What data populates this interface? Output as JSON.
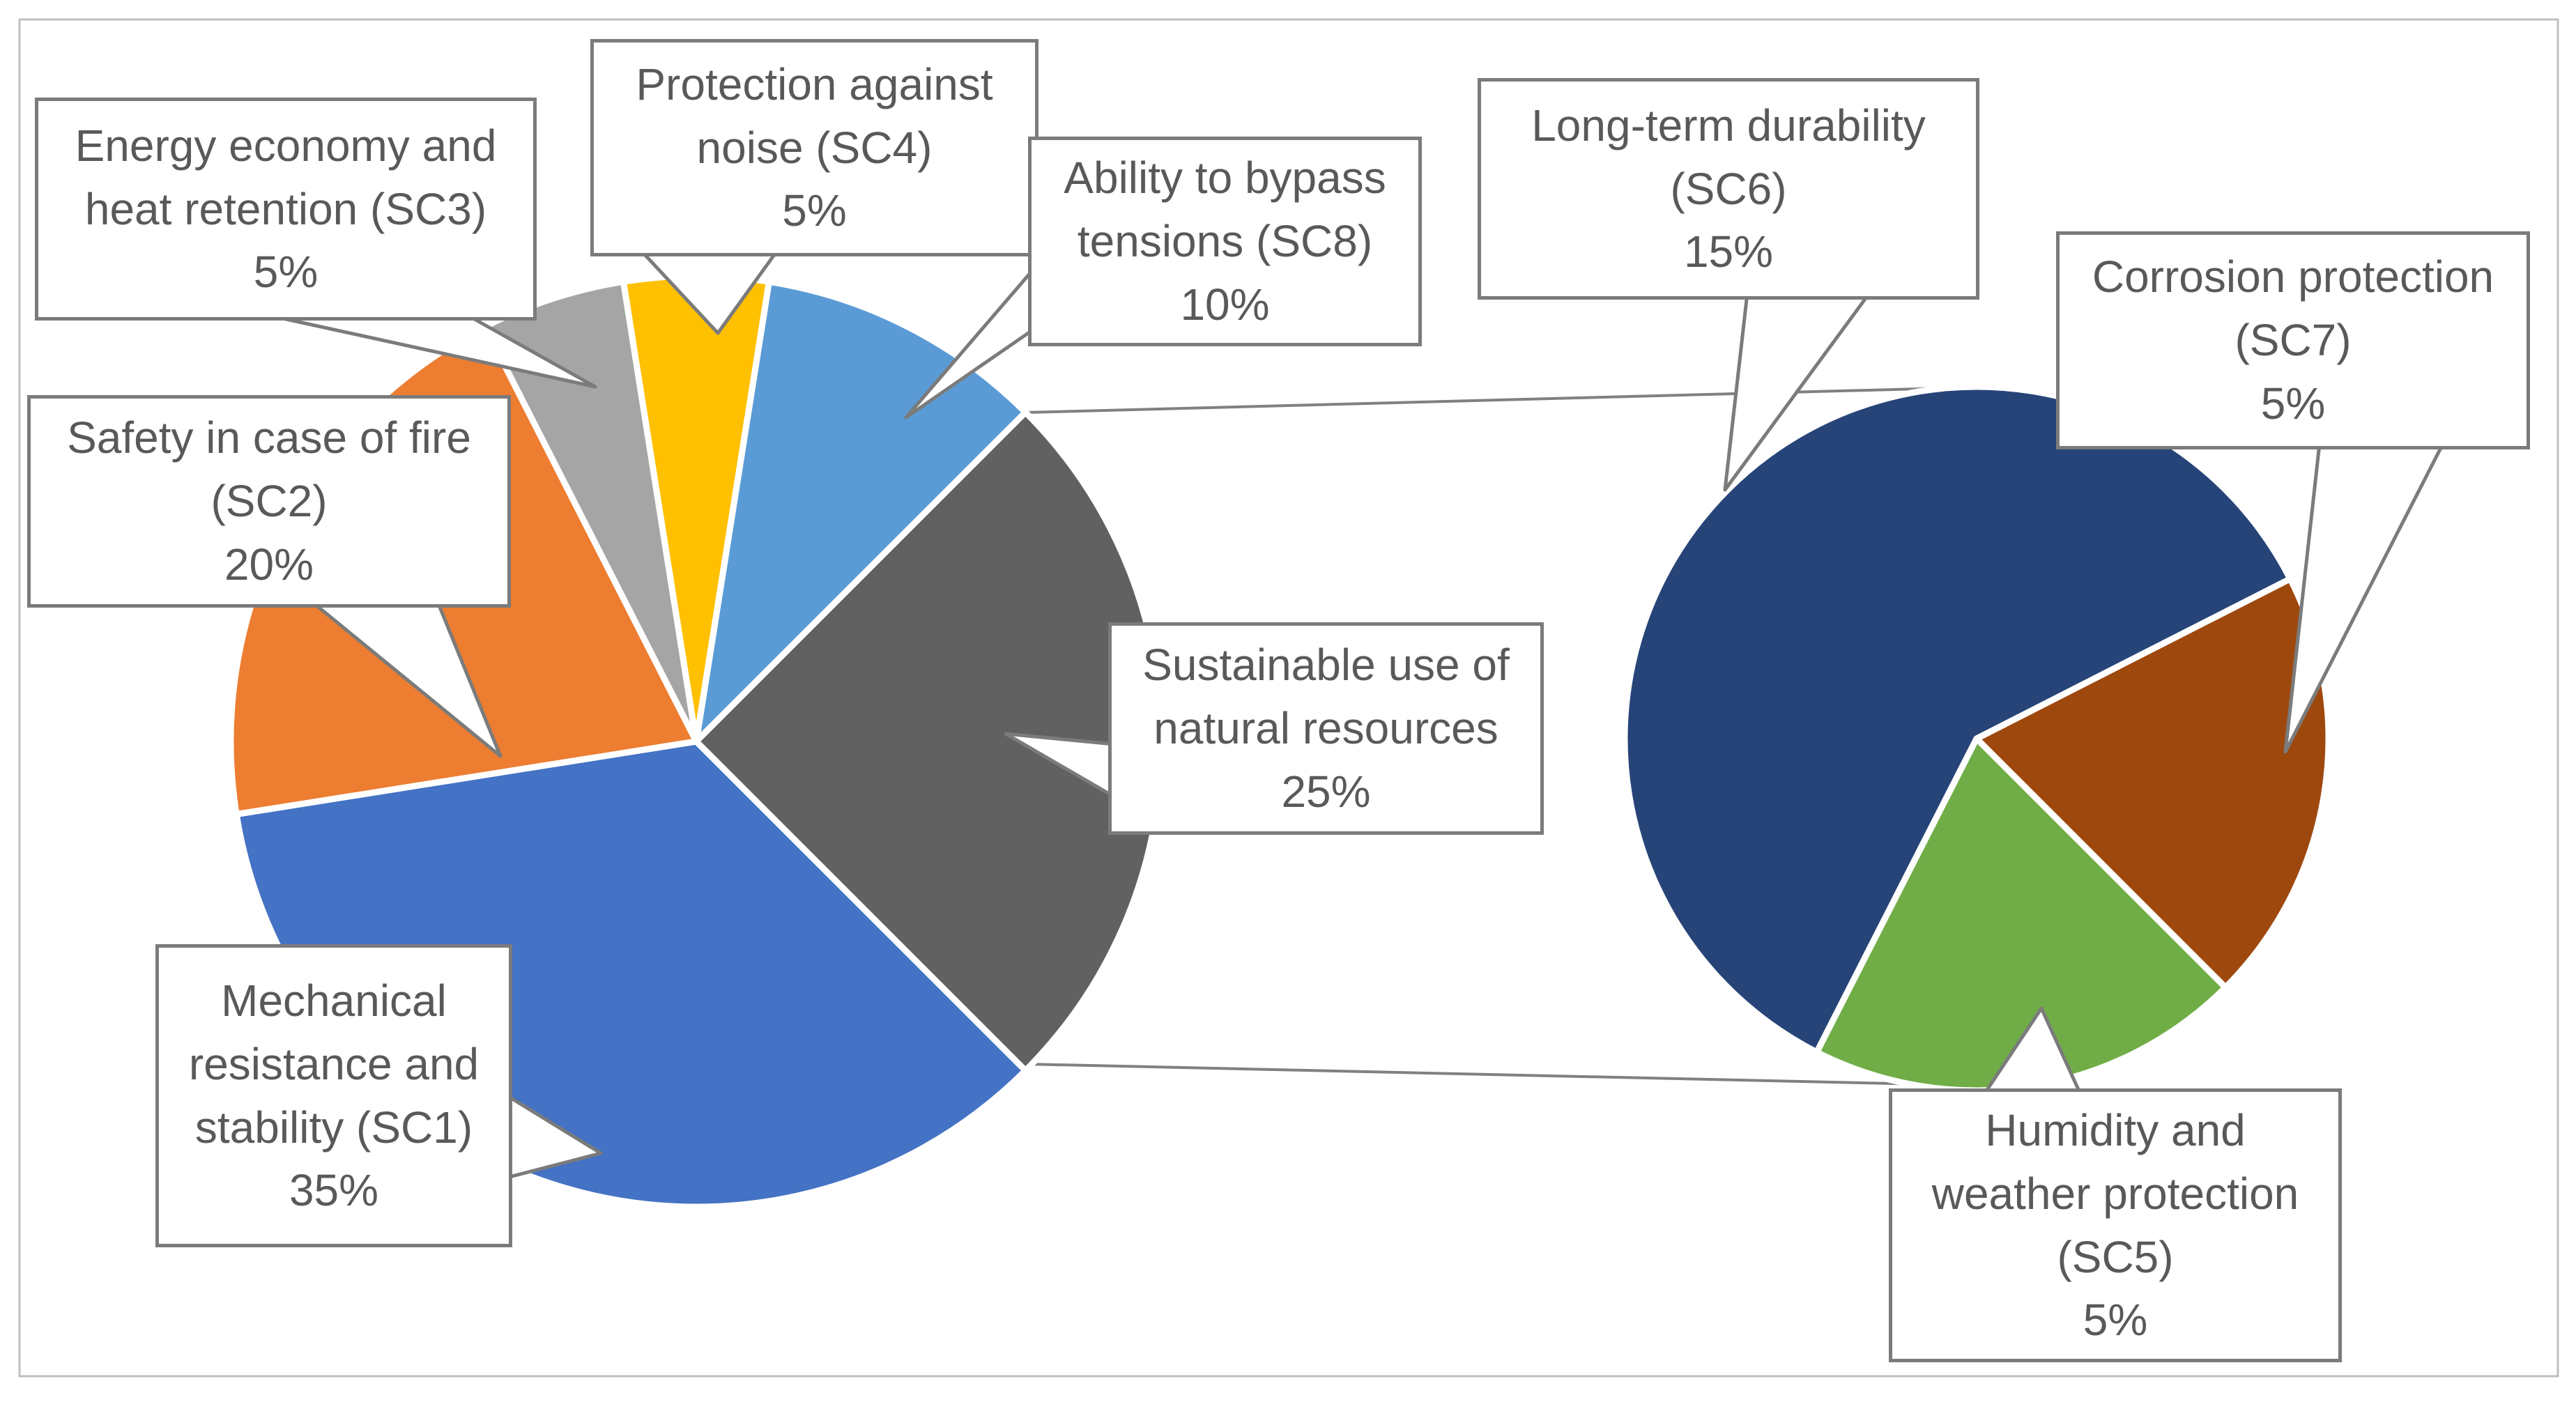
{
  "figure": {
    "description": "Pie-of-pie chart of structural criteria weights",
    "background_color": "#ffffff",
    "frame_color": "#bfbfbf"
  },
  "styles": {
    "text_color": "#595959",
    "callout_border_color": "#7b7b7b",
    "connector_color": "#808080",
    "slice_gap_color": "#ffffff"
  },
  "callouts": {
    "sc3": {
      "text": "Energy economy and\nheat retention (SC3)\n5%"
    },
    "sc4": {
      "text": "Protection against\nnoise (SC4)\n5%"
    },
    "sc8": {
      "text": "Ability to bypass\ntensions (SC8)\n10%"
    },
    "sc6": {
      "text": "Long-term durability\n(SC6)\n15%"
    },
    "sc7": {
      "text": "Corrosion protection\n(SC7)\n5%"
    },
    "sc2": {
      "text": "Safety in case of fire\n(SC2)\n20%"
    },
    "sus": {
      "text": "Sustainable use of\nnatural resources\n25%"
    },
    "sc1": {
      "text": "Mechanical\nresistance and\nstability (SC1)\n35%"
    },
    "sc5": {
      "text": "Humidity and\nweather protection\n(SC5)\n5%"
    }
  },
  "chart_data": {
    "type": "pie",
    "subtype": "pie-of-pie",
    "title": "",
    "legend": false,
    "main_pie": {
      "start_angle_deg": 135,
      "slices": [
        {
          "id": "sc1",
          "label": "Mechanical resistance and stability (SC1)",
          "value_pct": 35,
          "color": "#4472C4"
        },
        {
          "id": "sc2",
          "label": "Safety in case of fire (SC2)",
          "value_pct": 20,
          "color": "#ED7D31"
        },
        {
          "id": "sc3",
          "label": "Energy economy and heat retention (SC3)",
          "value_pct": 5,
          "color": "#A5A5A5"
        },
        {
          "id": "sc4",
          "label": "Protection against noise (SC4)",
          "value_pct": 5,
          "color": "#FFC000"
        },
        {
          "id": "sc8",
          "label": "Ability to bypass tensions (SC8)",
          "value_pct": 10,
          "color": "#5B9BD5"
        },
        {
          "id": "sus",
          "label": "Sustainable use of natural resources",
          "value_pct": 25,
          "color": "#616161"
        }
      ]
    },
    "secondary_pie": {
      "start_angle_deg": 207,
      "represents": "Sustainable use of natural resources (25%)",
      "slices": [
        {
          "id": "sc6",
          "label": "Long-term durability (SC6)",
          "value_pct": 15,
          "color": "#264478"
        },
        {
          "id": "sc7",
          "label": "Corrosion protection (SC7)",
          "value_pct": 5,
          "color": "#9E480E"
        },
        {
          "id": "sc5",
          "label": "Humidity and weather protection (SC5)",
          "value_pct": 5,
          "color": "#70AD47"
        }
      ]
    }
  }
}
